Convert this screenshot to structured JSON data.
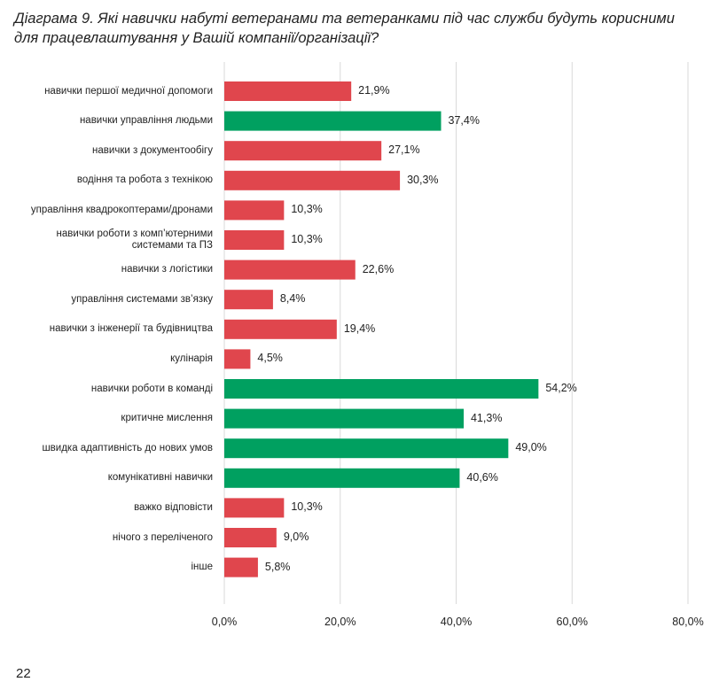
{
  "chart_data": {
    "type": "bar",
    "orientation": "horizontal",
    "title": [
      "Діаграма 9. Які навички набуті ветеранами та ветеранками під час служби будуть корисними",
      "для працевлаштування у Вашій компанії/організації?"
    ],
    "categories": [
      "навички першої медичної допомоги",
      "навички управління людьми",
      "навички з документообігу",
      "водіння та робота з технікою",
      "управління квадрокоптерами/дронами",
      "навички роботи з комп’ютерними\nсистемами та ПЗ",
      "навички з логістики",
      "управління системами зв’язку",
      "навички з інженерії та будівництва",
      "кулінарія",
      "навички роботи в команді",
      "критичне мислення",
      "швидка адаптивність до нових умов",
      "комунікативні навички",
      "важко відповісти",
      "нічого з переліченого",
      "інше"
    ],
    "values": [
      21.9,
      37.4,
      27.1,
      30.3,
      10.3,
      10.3,
      22.6,
      8.4,
      19.4,
      4.5,
      54.2,
      41.3,
      49.0,
      40.6,
      10.3,
      9.0,
      5.8
    ],
    "value_labels": [
      "21,9%",
      "37,4%",
      "27,1%",
      "30,3%",
      "10,3%",
      "10,3%",
      "22,6%",
      "8,4%",
      "19,4%",
      "4,5%",
      "54,2%",
      "41,3%",
      "49,0%",
      "40,6%",
      "10,3%",
      "9,0%",
      "5,8%"
    ],
    "colors": [
      "#e0464d",
      "#00a060",
      "#e0464d",
      "#e0464d",
      "#e0464d",
      "#e0464d",
      "#e0464d",
      "#e0464d",
      "#e0464d",
      "#e0464d",
      "#00a060",
      "#00a060",
      "#00a060",
      "#00a060",
      "#e0464d",
      "#e0464d",
      "#e0464d"
    ],
    "xlim": [
      0,
      80
    ],
    "xticks": [
      {
        "value": 0,
        "label": "0,0%"
      },
      {
        "value": 20,
        "label": "20,0%"
      },
      {
        "value": 40,
        "label": "40,0%"
      },
      {
        "value": 60,
        "label": "60,0%"
      },
      {
        "value": 80,
        "label": "80,0%"
      }
    ],
    "grid": true
  },
  "page_number": "22"
}
